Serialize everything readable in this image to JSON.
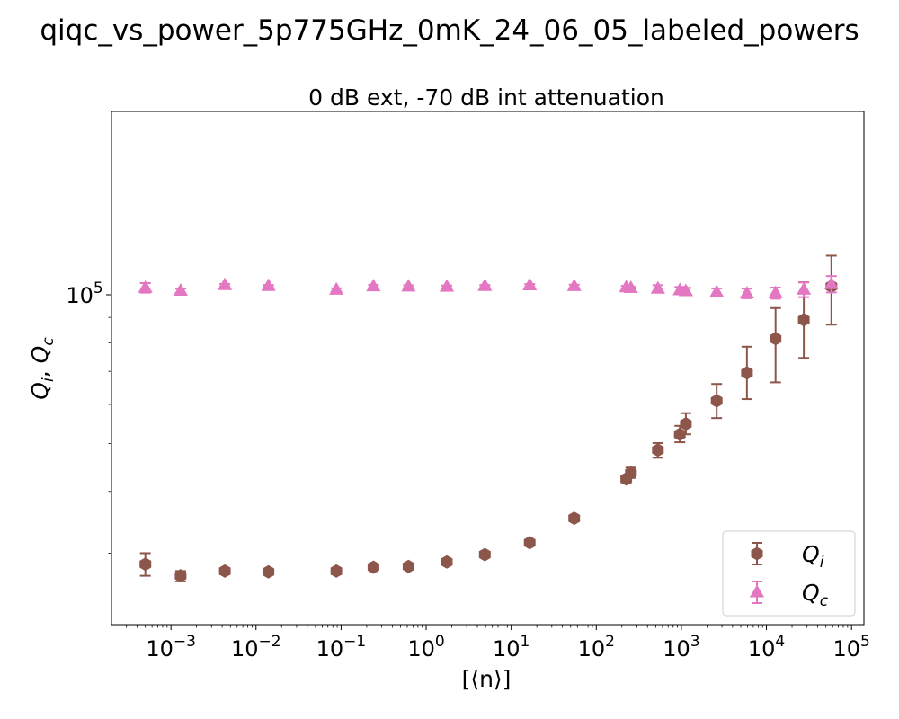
{
  "figure": {
    "suptitle": "qiqc_vs_power_5p775GHz_0mK_24_06_05_labeled_powers"
  },
  "chart_data": {
    "type": "scatter",
    "title": "0 dB ext, -70 dB int attenuation",
    "xlabel": "[⟨n⟩]",
    "ylabel": "Qi, Qc",
    "xscale": "log",
    "yscale": "log",
    "xlim": [
      0.0002,
      140000
    ],
    "ylim": [
      21500,
      235000
    ],
    "xticks": [
      {
        "value": 0.001,
        "base": "10",
        "exp": "−3"
      },
      {
        "value": 0.01,
        "base": "10",
        "exp": "−2"
      },
      {
        "value": 0.1,
        "base": "10",
        "exp": "−1"
      },
      {
        "value": 1,
        "base": "10",
        "exp": "0"
      },
      {
        "value": 10,
        "base": "10",
        "exp": "1"
      },
      {
        "value": 100,
        "base": "10",
        "exp": "2"
      },
      {
        "value": 1000,
        "base": "10",
        "exp": "3"
      },
      {
        "value": 10000,
        "base": "10",
        "exp": "4"
      },
      {
        "value": 100000,
        "base": "10",
        "exp": "5"
      }
    ],
    "yticks": [
      {
        "value": 100000,
        "base": "10",
        "exp": "5"
      }
    ],
    "grid": false,
    "legend": "bottom-right",
    "series": [
      {
        "name": "Q",
        "subscript": "i",
        "marker": "hexagon",
        "color": "#8c564b",
        "x": [
          0.0005,
          0.0013,
          0.0043,
          0.014,
          0.088,
          0.24,
          0.62,
          1.75,
          4.9,
          16.5,
          55,
          225,
          255,
          530,
          960,
          1130,
          2600,
          5900,
          12800,
          27500,
          58000
        ],
        "y": [
          28500,
          27000,
          27600,
          27500,
          27600,
          28100,
          28200,
          28800,
          29800,
          31500,
          35300,
          42400,
          43600,
          48500,
          52200,
          54800,
          61000,
          69500,
          81500,
          89000,
          104000
        ],
        "yerr_low": [
          27000,
          26300,
          27200,
          27200,
          27200,
          27900,
          28000,
          28600,
          29600,
          31300,
          34900,
          41700,
          42600,
          46800,
          50300,
          52200,
          56300,
          61500,
          66500,
          74500,
          87000
        ],
        "yerr_high": [
          30000,
          27600,
          27900,
          27700,
          27900,
          28300,
          28400,
          29000,
          30000,
          31700,
          35600,
          43100,
          44700,
          50100,
          54300,
          57600,
          66000,
          78500,
          94000,
          106000,
          120000
        ]
      },
      {
        "name": "Q",
        "subscript": "c",
        "marker": "triangle",
        "color": "#e377c2",
        "x": [
          0.0005,
          0.0013,
          0.0043,
          0.014,
          0.088,
          0.24,
          0.62,
          1.75,
          4.9,
          16.5,
          55,
          225,
          255,
          530,
          960,
          1130,
          2600,
          5900,
          12800,
          27500,
          58000
        ],
        "y": [
          103300,
          101900,
          104600,
          104200,
          102400,
          104000,
          103900,
          103800,
          104200,
          104500,
          104100,
          103500,
          103200,
          102900,
          102100,
          101700,
          101200,
          100600,
          100800,
          102400,
          105100
        ],
        "yerr_low": [
          101000,
          100900,
          104000,
          103700,
          101700,
          103300,
          103300,
          103200,
          103700,
          103900,
          103400,
          102800,
          102600,
          101200,
          100500,
          100100,
          99400,
          98400,
          98200,
          98900,
          101100
        ],
        "yerr_high": [
          105600,
          102900,
          105200,
          104700,
          103100,
          104700,
          104500,
          104400,
          104700,
          105100,
          104800,
          104200,
          103800,
          104600,
          103700,
          103300,
          103000,
          102900,
          103400,
          105900,
          109100
        ]
      }
    ]
  }
}
